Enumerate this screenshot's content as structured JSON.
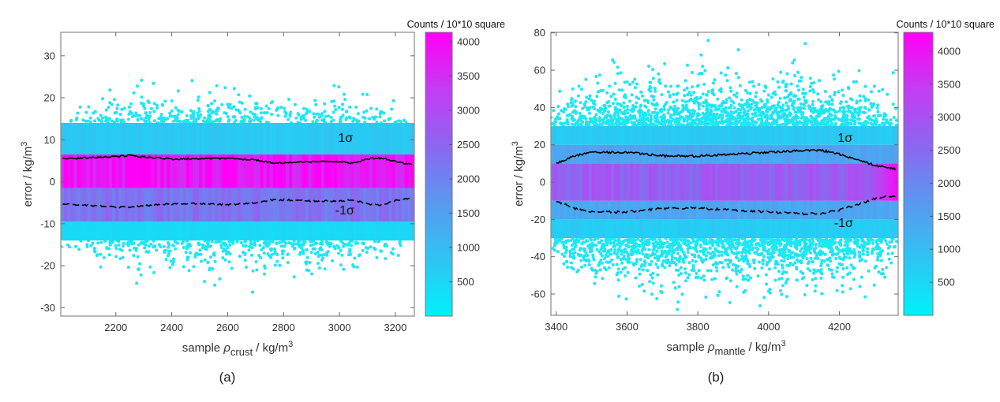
{
  "colormap": [
    "#00f2fa",
    "#2fc4f2",
    "#5a98f0",
    "#8c66f0",
    "#c43cf4",
    "#ff00f6"
  ],
  "point_color": "#1fe6f2",
  "chart_data": [
    {
      "type": "scatter",
      "panel_label": "(a)",
      "xlabel": {
        "prefix": "sample ",
        "symbol": "ρ",
        "sub": "crust",
        "unit": " / kg/m",
        "sup": "3"
      },
      "ylabel": {
        "text": "error / kg/m",
        "sup": "3"
      },
      "xlim": [
        2003,
        3268
      ],
      "ylim": [
        -32,
        35.6
      ],
      "xticks": [
        2200,
        2400,
        2600,
        2800,
        3000,
        3200
      ],
      "yticks": [
        -30,
        -20,
        -10,
        0,
        10,
        20,
        30
      ],
      "colorbar": {
        "title": "Counts / 10*10 square",
        "range": [
          0,
          4137
        ],
        "ticks": [
          500,
          1000,
          1500,
          2000,
          2500,
          3000,
          3500,
          4000
        ]
      },
      "density_bands": [
        {
          "from": -14,
          "to": -9.5,
          "count": 450
        },
        {
          "from": -9.5,
          "to": -1.5,
          "count": 2250
        },
        {
          "from": -1.5,
          "to": 6.5,
          "count": 3950
        },
        {
          "from": 6.5,
          "to": 14,
          "count": 750
        }
      ],
      "scatter_spread": 6.6,
      "sigma": {
        "x": [
          2010,
          2100,
          2200,
          2250,
          2300,
          2400,
          2500,
          2600,
          2700,
          2750,
          2800,
          2900,
          3000,
          3050,
          3100,
          3150,
          3200,
          3260
        ],
        "upper": [
          5.5,
          5.7,
          6.0,
          6.3,
          5.9,
          5.4,
          5.5,
          5.6,
          5.2,
          4.6,
          4.5,
          4.8,
          4.8,
          4.4,
          5.5,
          5.6,
          4.8,
          4.0
        ],
        "lower": [
          -5.3,
          -5.6,
          -6.0,
          -6.1,
          -5.7,
          -5.3,
          -5.2,
          -5.5,
          -5.0,
          -4.4,
          -4.3,
          -4.6,
          -4.6,
          -4.3,
          -5.3,
          -5.5,
          -4.5,
          -3.9
        ]
      },
      "annotations": [
        {
          "text": "1σ",
          "x": 2995,
          "y": 9.5
        },
        {
          "text": "-1σ",
          "x": 2985,
          "y": -7.8
        }
      ]
    },
    {
      "type": "scatter",
      "panel_label": "(b)",
      "xlabel": {
        "prefix": "sample ",
        "symbol": "ρ",
        "sub": "mantle",
        "unit": " / kg/m",
        "sup": "3"
      },
      "ylabel": {
        "text": "error / kg/m",
        "sup": "3"
      },
      "xlim": [
        3385,
        4366
      ],
      "ylim": [
        -71.4,
        80.3
      ],
      "xticks": [
        3400,
        3600,
        3800,
        4000,
        4200
      ],
      "yticks": [
        -60,
        -40,
        -20,
        0,
        20,
        40,
        60,
        80
      ],
      "colorbar": {
        "title": "Counts / 10*10 square",
        "range": [
          0,
          4285
        ],
        "ticks": [
          500,
          1000,
          1500,
          2000,
          2500,
          3000,
          3500,
          4000
        ]
      },
      "density_bands": [
        {
          "from": -30,
          "to": -20,
          "count": 700
        },
        {
          "from": -20,
          "to": -10,
          "count": 1450
        },
        {
          "from": -10,
          "to": 10,
          "count": 2750
        },
        {
          "from": 10,
          "to": 20,
          "count": 1450
        },
        {
          "from": 20,
          "to": 30,
          "count": 750
        }
      ],
      "scatter_spread": 19,
      "sigma": {
        "x": [
          3400,
          3450,
          3500,
          3600,
          3700,
          3800,
          3900,
          4000,
          4100,
          4150,
          4200,
          4250,
          4300,
          4360
        ],
        "upper": [
          10,
          14,
          16,
          16,
          14,
          14,
          15,
          16,
          17,
          17,
          15,
          12,
          9,
          7
        ],
        "lower": [
          -10,
          -14,
          -16,
          -16,
          -14,
          -14,
          -15,
          -16,
          -17,
          -17,
          -15,
          -12,
          -9,
          -7
        ]
      },
      "annotations": [
        {
          "text": "1σ",
          "x": 4195,
          "y": 21.5
        },
        {
          "text": "-1σ",
          "x": 4185,
          "y": -24
        }
      ]
    }
  ]
}
